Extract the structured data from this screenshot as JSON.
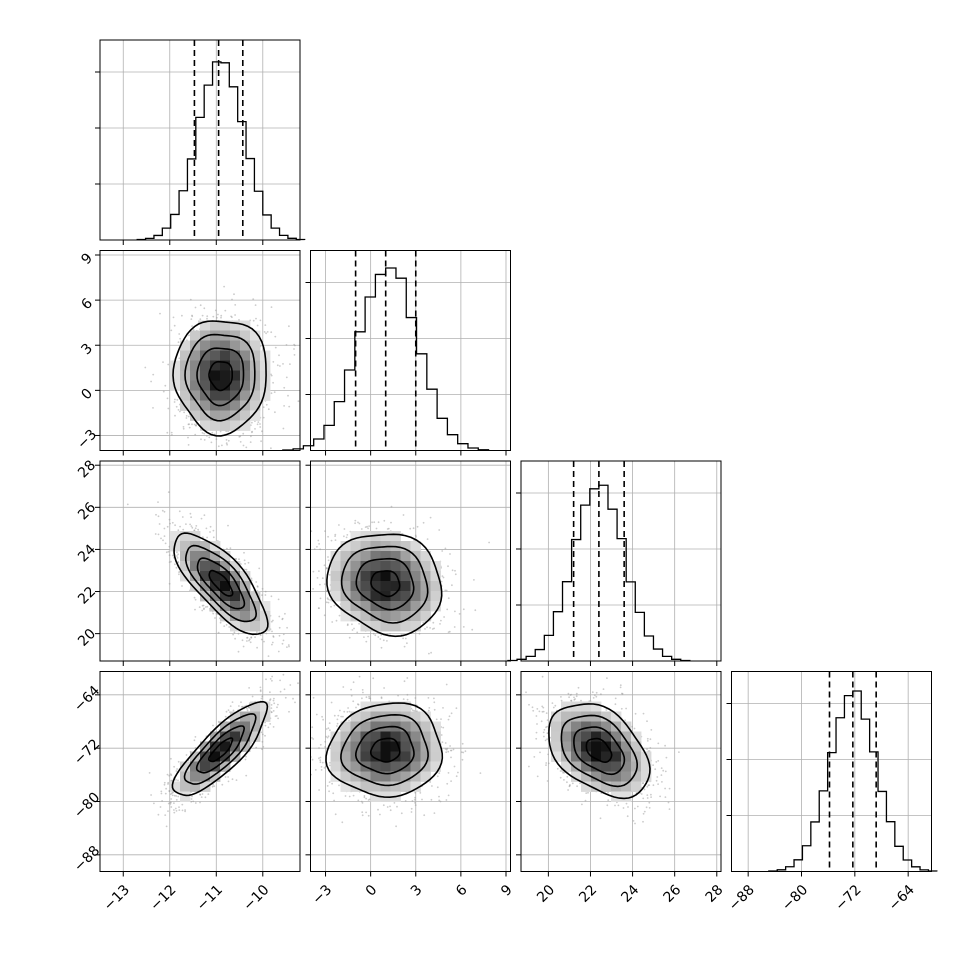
{
  "chart_data": {
    "type": "corner",
    "parameters": 4,
    "axes": [
      {
        "index": 0,
        "range": [
          -13.5,
          -9.2
        ],
        "ticks": [
          -13,
          -12,
          -11,
          -10
        ],
        "mean": -10.9,
        "sd": 0.5
      },
      {
        "index": 1,
        "range": [
          -4,
          9.3
        ],
        "ticks": [
          -3,
          0,
          3,
          6,
          9
        ],
        "mean": 1.0,
        "sd": 1.9
      },
      {
        "index": 2,
        "range": [
          18.7,
          28.2
        ],
        "ticks": [
          20,
          22,
          24,
          26,
          28
        ],
        "mean": 22.4,
        "sd": 1.2
      },
      {
        "index": 3,
        "range": [
          -90.5,
          -60.5
        ],
        "ticks": [
          -88,
          -80,
          -72,
          -64
        ],
        "mean": -72.3,
        "sd": 3.5
      }
    ],
    "quantiles": [
      [
        -11.47,
        -10.95,
        -10.43
      ],
      [
        -1.0,
        1.0,
        3.0
      ],
      [
        21.2,
        22.4,
        23.6
      ],
      [
        -75.8,
        -72.3,
        -68.8
      ]
    ],
    "correlations": {
      "1-0": 0.0,
      "2-0": -0.75,
      "2-1": -0.12,
      "3-0": 0.82,
      "3-1": 0.05,
      "3-2": -0.4
    },
    "grid": true,
    "histogram_bins": 20,
    "contour_levels_sigma": [
      0.5,
      1.0,
      1.5,
      2.0
    ],
    "color": "#000000"
  }
}
